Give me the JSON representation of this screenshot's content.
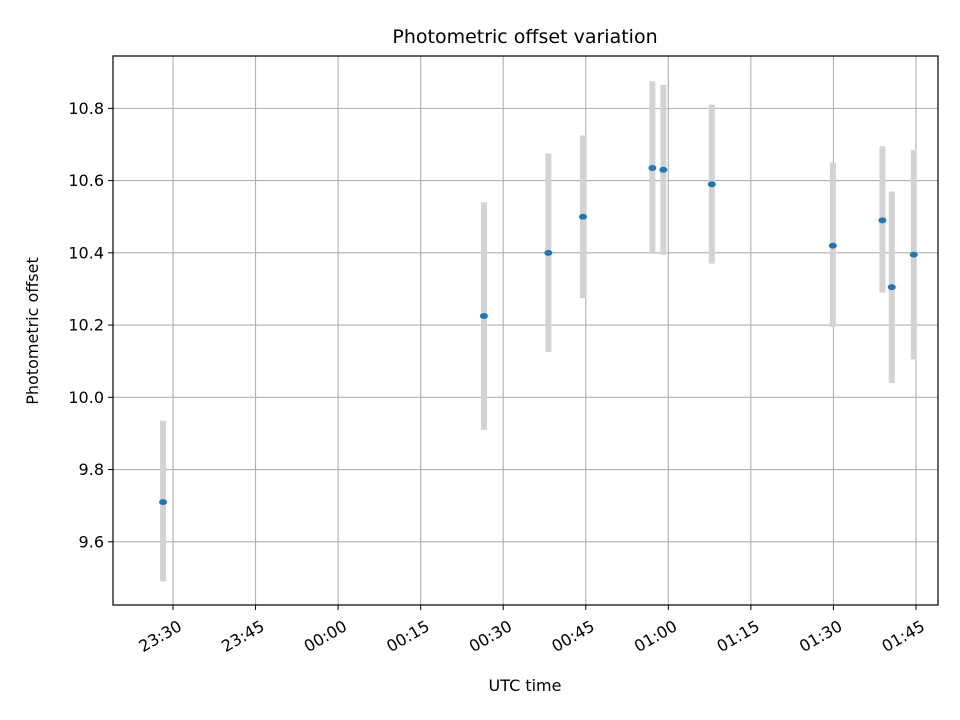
{
  "chart_data": {
    "type": "scatter",
    "title": "Photometric offset variation",
    "xlabel": "UTC time",
    "ylabel": "Photometric offset",
    "grid": true,
    "x_unit": "minutes",
    "x_start_label": "23:00",
    "xlim": [
      19.1,
      169.0
    ],
    "ylim": [
      9.425,
      10.945
    ],
    "x_ticks": [
      {
        "value": 30,
        "label": "23:30"
      },
      {
        "value": 45,
        "label": "23:45"
      },
      {
        "value": 60,
        "label": "00:00"
      },
      {
        "value": 75,
        "label": "00:15"
      },
      {
        "value": 90,
        "label": "00:30"
      },
      {
        "value": 105,
        "label": "00:45"
      },
      {
        "value": 120,
        "label": "01:00"
      },
      {
        "value": 135,
        "label": "01:15"
      },
      {
        "value": 150,
        "label": "01:30"
      },
      {
        "value": 165,
        "label": "01:45"
      }
    ],
    "y_ticks": [
      {
        "value": 9.6,
        "label": "9.6"
      },
      {
        "value": 9.8,
        "label": "9.8"
      },
      {
        "value": 10.0,
        "label": "10.0"
      },
      {
        "value": 10.2,
        "label": "10.2"
      },
      {
        "value": 10.4,
        "label": "10.4"
      },
      {
        "value": 10.6,
        "label": "10.6"
      },
      {
        "value": 10.8,
        "label": "10.8"
      }
    ],
    "points": [
      {
        "time": "23:28",
        "x": 28.2,
        "y": 9.71,
        "y_low": 9.49,
        "y_high": 9.935
      },
      {
        "time": "00:26",
        "x": 86.5,
        "y": 10.225,
        "y_low": 9.91,
        "y_high": 10.54
      },
      {
        "time": "00:38",
        "x": 98.2,
        "y": 10.4,
        "y_low": 10.125,
        "y_high": 10.675
      },
      {
        "time": "00:44",
        "x": 104.5,
        "y": 10.5,
        "y_low": 10.275,
        "y_high": 10.725
      },
      {
        "time": "00:57",
        "x": 117.1,
        "y": 10.635,
        "y_low": 10.4,
        "y_high": 10.875
      },
      {
        "time": "00:59",
        "x": 119.1,
        "y": 10.63,
        "y_low": 10.395,
        "y_high": 10.865
      },
      {
        "time": "01:07",
        "x": 127.9,
        "y": 10.59,
        "y_low": 10.37,
        "y_high": 10.81
      },
      {
        "time": "01:29",
        "x": 149.9,
        "y": 10.42,
        "y_low": 10.195,
        "y_high": 10.65
      },
      {
        "time": "01:38",
        "x": 158.9,
        "y": 10.49,
        "y_low": 10.29,
        "y_high": 10.695
      },
      {
        "time": "01:40",
        "x": 160.6,
        "y": 10.305,
        "y_low": 10.04,
        "y_high": 10.57
      },
      {
        "time": "01:44",
        "x": 164.6,
        "y": 10.395,
        "y_low": 10.105,
        "y_high": 10.685
      }
    ],
    "colors": {
      "point": "#1f77b4",
      "errorbar": "#d3d3d3",
      "grid": "#b0b0b0",
      "axis": "#000000"
    }
  }
}
